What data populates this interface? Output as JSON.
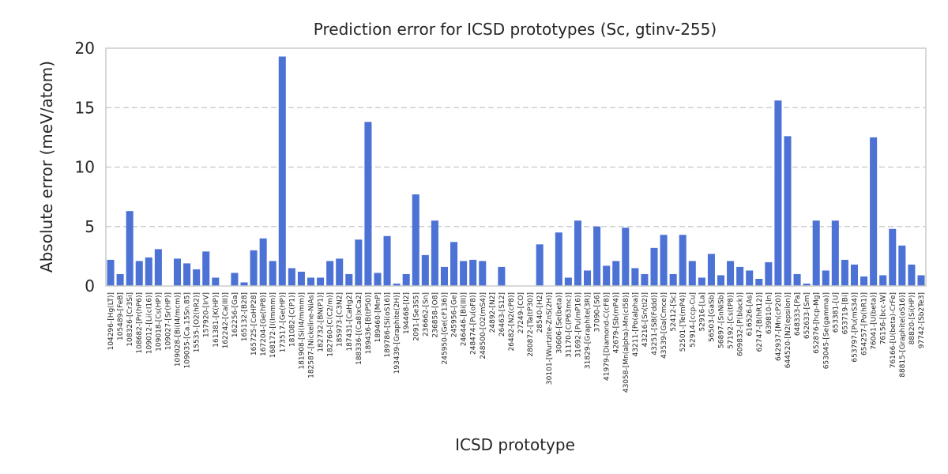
{
  "chart_data": {
    "type": "bar",
    "title": "Prediction error for ICSD prototypes (Sc, gtinv-255)",
    "xlabel": "ICSD prototype",
    "ylabel": "Absolute error (meV/atom)",
    "ylim": [
      0,
      20
    ],
    "yticks": [
      0,
      5,
      10,
      15,
      20
    ],
    "grid": "horizontal dashed",
    "colors": {
      "bar": "#4c72d5",
      "grid": "#cfcfcf",
      "frame": "#cccccc",
      "text": "#262626"
    },
    "categories": [
      "104296-[Hg(LT)]",
      "105489-[FeB]",
      "108326-[Cr3Si]",
      "108682-[Pr(hP6)]",
      "109012-[Li(cI16)]",
      "109018-[Cs(HP)]",
      "109027-[Sr(HP)]",
      "109028-[Bi(I4/mcm)]",
      "109035-[Ca.15Sn.85]",
      "15535-[O2(hR2)]",
      "157920-[IrV]",
      "161381-[K(HP)]",
      "162242-[Ca(III)]",
      "162256-[Ga]",
      "165132-[B28]",
      "165725-[CoHP28]",
      "167204-[Ge(hP8)]",
      "168172-[I(Immm)]",
      "173517-[Ge(HP)]",
      "181082-[C(P1)]",
      "181908-[Si(I4/mmm)]",
      "182587-[Nickeline-NiAs]",
      "182732-[BN(P1)]",
      "182760-[C(C2/m)]",
      "185973-[C3N2]",
      "187431-[CaHg2]",
      "188336-[(Ca8)xCa2]",
      "189436-[B(tP50)]",
      "189460-[MnP]",
      "189786-[Si(oS16)]",
      "193439-[Graphite(2H)]",
      "194468-[I2]",
      "2091-[Se3S5]",
      "236662-[Sn]",
      "236858-[O8]",
      "245950-[Ge(cF136)]",
      "245956-[Ge]",
      "246446-[Bi(III)]",
      "248474-[Pu(oF8)]",
      "248500-[O2(mS4)]",
      "24892-[N2]",
      "26463-[S12]",
      "26482-[N2(cP8)]",
      "27249-[CO]",
      "280872-[Ta(tP30)]",
      "28540-[H2]",
      "30101-[Wurtzite-ZnS(2H)]",
      "30606-[Se(beta)]",
      "31170-[C(P63mc)]",
      "31692-[Pu(mP16)]",
      "31829-[Graphite(3R)]",
      "37090-[S6]",
      "41979-[Diamond-C(cF8)]",
      "42679-[Sb(mP4)]",
      "43058-[Mn(alpha)-Mn(cI58)]",
      "43211-[Po(alpha)]",
      "43216-[Sn(tI2)]",
      "43251-[S8(Fddd)]",
      "43539-[Ga(Cmce)]",
      "52412-[Sc]",
      "52501-[Te(mP4)]",
      "52914-[ccp-Cu]",
      "52916-[La]",
      "56503-[GaSb]",
      "56897-[SnNiSb]",
      "57192-[Cs(tP8)]",
      "609832-[P(black)]",
      "616526-[As]",
      "62747-[B(hR12)]",
      "639810-[In]",
      "642937-[Mn(cP20)]",
      "644520-[N2(epsilon)]",
      "648333-[Pa]",
      "652633-[Sm]",
      "652876-[hcp-Mg]",
      "653045-[Se(gamma)]",
      "653381-[U]",
      "653719-[Bi]",
      "653797-[Pu(mS34)]",
      "654257-[Po(hR1)]",
      "76041-[U(beta)]",
      "76156-[bcc-W]",
      "76166-[U(beta)-CrFe]",
      "88815-[Graphite(oS16)]",
      "88820-[Si(HP)]",
      "97742-[Sb2Te3]"
    ],
    "values": [
      2.2,
      1.0,
      6.3,
      2.1,
      2.4,
      3.1,
      0.0,
      2.3,
      1.9,
      1.4,
      2.9,
      0.7,
      0.0,
      1.1,
      0.3,
      3.0,
      4.0,
      2.1,
      19.3,
      1.5,
      1.2,
      0.7,
      0.7,
      2.1,
      2.3,
      1.0,
      3.9,
      13.8,
      1.1,
      4.2,
      0.2,
      1.0,
      7.7,
      2.6,
      5.5,
      1.6,
      3.7,
      2.1,
      2.2,
      2.1,
      0.0,
      1.6,
      0.0,
      0.0,
      0.0,
      3.5,
      0.0,
      4.5,
      0.7,
      5.5,
      1.3,
      5.0,
      1.7,
      2.1,
      4.9,
      1.5,
      1.0,
      3.2,
      4.3,
      1.0,
      4.3,
      2.1,
      0.7,
      2.7,
      0.9,
      2.1,
      1.6,
      1.3,
      0.6,
      2.0,
      15.6,
      12.6,
      1.0,
      0.2,
      5.5,
      1.3,
      5.5,
      2.2,
      1.8,
      0.8,
      12.5,
      0.9,
      4.8,
      3.4,
      1.8,
      0.9
    ]
  }
}
